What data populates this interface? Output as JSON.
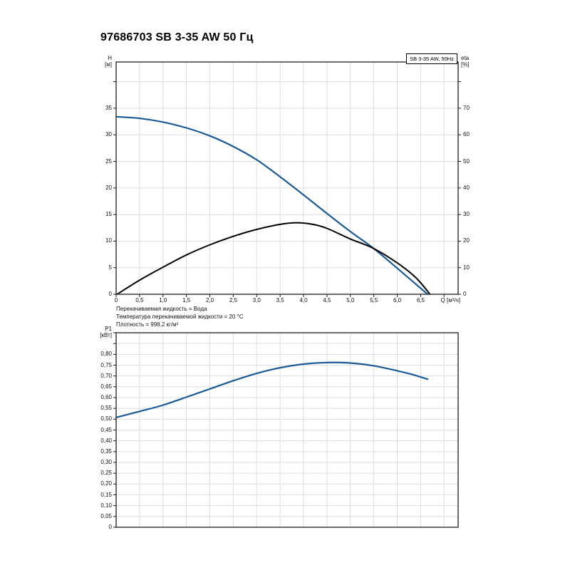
{
  "title": "97686703 SB 3-35 AW 50 Гц",
  "notes": [
    "Перекачиваемая жидкость = Вода",
    "Температура перекачиваемой жидкости = 20 °C",
    "Плотность = 998.2 кг/м³"
  ],
  "colors": {
    "curve_blue": "#1a5a96",
    "curve_black": "#000000",
    "grid": "#dedede",
    "frame": "#3c3c3c",
    "tick": "#1a1a1a"
  },
  "chart_data": [
    {
      "type": "line",
      "legend": "SB 3-35 AW, 50Hz",
      "x_axis": {
        "label": "Q [м³/ч]",
        "min": 0,
        "max": 7.3,
        "grid_step": 0.5,
        "tick_values": [
          0,
          0.5,
          1,
          1.5,
          2,
          2.5,
          3,
          3.5,
          4,
          4.5,
          5,
          5.5,
          6,
          6.5
        ],
        "tick_labels": [
          "0",
          "0,5",
          "1,0",
          "1,5",
          "2,0",
          "2,5",
          "3,0",
          "3,5",
          "4,0",
          "4,5",
          "5,0",
          "5,5",
          "6,0",
          "6,5"
        ]
      },
      "y_left": {
        "label_line1": "H",
        "label_line2": "[м]",
        "min": 0,
        "max": 43.7,
        "grid_step": 5,
        "tick_values": [
          0,
          5,
          10,
          15,
          20,
          25,
          30,
          35
        ],
        "tick_labels": [
          "0",
          "5",
          "10",
          "15",
          "20",
          "25",
          "30",
          "35"
        ]
      },
      "y_right": {
        "label_line1": "eta",
        "label_line2": "[%]",
        "min": 0,
        "max": 87.4,
        "grid_step": 10,
        "tick_values": [
          0,
          10,
          20,
          30,
          40,
          50,
          60,
          70
        ],
        "tick_labels": [
          "0",
          "10",
          "20",
          "30",
          "40",
          "50",
          "60",
          "70"
        ]
      },
      "series": [
        {
          "name": "H-curve",
          "axis": "left",
          "color_key": "curve_blue",
          "width": 2.2,
          "points": [
            [
              0,
              33.4
            ],
            [
              0.5,
              33.1
            ],
            [
              1,
              32.4
            ],
            [
              1.5,
              31.3
            ],
            [
              2,
              29.8
            ],
            [
              2.5,
              27.8
            ],
            [
              3,
              25.3
            ],
            [
              3.5,
              22.1
            ],
            [
              4,
              18.7
            ],
            [
              4.5,
              15.2
            ],
            [
              5,
              11.8
            ],
            [
              5.5,
              8.6
            ],
            [
              6,
              4.9
            ],
            [
              6.65,
              0
            ]
          ]
        },
        {
          "name": "eta-curve",
          "axis": "right",
          "color_key": "curve_black",
          "width": 2,
          "points": [
            [
              0.02,
              0
            ],
            [
              0.5,
              5.3
            ],
            [
              1,
              10.2
            ],
            [
              1.5,
              14.8
            ],
            [
              2,
              18.6
            ],
            [
              2.5,
              21.8
            ],
            [
              3,
              24.4
            ],
            [
              3.5,
              26.3
            ],
            [
              3.85,
              26.9
            ],
            [
              4.2,
              26.3
            ],
            [
              4.5,
              24.8
            ],
            [
              5,
              20.8
            ],
            [
              5.5,
              17.2
            ],
            [
              6,
              11.8
            ],
            [
              6.4,
              6.2
            ],
            [
              6.7,
              0
            ]
          ]
        }
      ]
    },
    {
      "type": "line",
      "x_axis": {
        "min": 0,
        "max": 7.3,
        "grid_step": 0.5,
        "tick_values": [],
        "tick_labels": []
      },
      "y_left": {
        "label_line1": "P1",
        "label_line2": "[кВт]",
        "min": 0,
        "max": 0.9,
        "grid_step": 0.05,
        "tick_values": [
          0,
          0.05,
          0.1,
          0.15,
          0.2,
          0.25,
          0.3,
          0.35,
          0.4,
          0.45,
          0.5,
          0.55,
          0.6,
          0.65,
          0.7,
          0.75,
          0.8
        ],
        "tick_labels": [
          "0",
          "0,05",
          "0,10",
          "0,15",
          "0,20",
          "0,25",
          "0,30",
          "0,35",
          "0,40",
          "0,45",
          "0,50",
          "0,55",
          "0,60",
          "0,65",
          "0,70",
          "0,75",
          "0,80"
        ]
      },
      "series": [
        {
          "name": "P1-curve",
          "axis": "left",
          "color_key": "curve_blue",
          "width": 2.2,
          "points": [
            [
              0,
              0.508
            ],
            [
              0.5,
              0.536
            ],
            [
              1,
              0.565
            ],
            [
              1.5,
              0.602
            ],
            [
              2,
              0.64
            ],
            [
              2.5,
              0.678
            ],
            [
              3,
              0.712
            ],
            [
              3.5,
              0.738
            ],
            [
              4,
              0.755
            ],
            [
              4.5,
              0.762
            ],
            [
              5,
              0.76
            ],
            [
              5.5,
              0.747
            ],
            [
              6,
              0.724
            ],
            [
              6.3,
              0.708
            ],
            [
              6.65,
              0.685
            ]
          ]
        }
      ]
    }
  ]
}
